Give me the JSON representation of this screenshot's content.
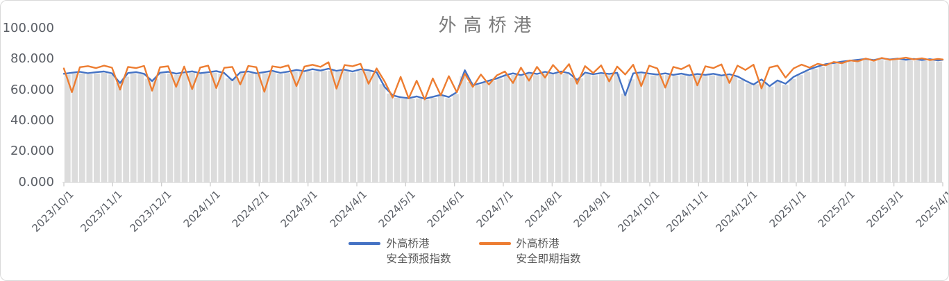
{
  "chart": {
    "title": "外高桥港",
    "colors": {
      "forecast_line": "#4472C4",
      "spot_line": "#ED7D31",
      "background_bars": "#DCDCDC",
      "axis_line": "#D9D9D9",
      "tick_mark": "#C9C9C9",
      "axis_text": "#5b5f66",
      "legend_text": "#595959",
      "title_text": "#7b7b7b",
      "frame_border": "#D9D9D9"
    },
    "legend": {
      "items": [
        {
          "line1": "外高桥港",
          "line2": "安全预报指数",
          "color": "#4472C4"
        },
        {
          "line1": "外高桥港",
          "line2": "安全即期指数",
          "color": "#ED7D31"
        }
      ]
    }
  },
  "chart_data": {
    "type": "line",
    "title": "外高桥港",
    "grid": "off",
    "legend_position": "bottom-center",
    "x_axis": {
      "start": "2023/10/1",
      "end": "2025/4/1",
      "tick_labels": [
        "2023/10/1",
        "2023/11/1",
        "2023/12/1",
        "2024/1/1",
        "2024/2/1",
        "2024/3/1",
        "2024/4/1",
        "2024/5/1",
        "2024/6/1",
        "2024/7/1",
        "2024/8/1",
        "2024/9/1",
        "2024/10/1",
        "2024/11/1",
        "2024/12/1",
        "2025/1/1",
        "2025/2/1",
        "2025/3/1",
        "2025/4/1"
      ],
      "unit": "days since 2023/10/1"
    },
    "y_axis": {
      "min": 0,
      "max": 100,
      "tick_labels": [
        "0.000",
        "20.000",
        "40.000",
        "60.000",
        "80.000",
        "100.000"
      ]
    },
    "days": [
      0,
      5,
      10,
      15,
      20,
      25,
      30,
      35,
      40,
      45,
      50,
      55,
      60,
      65,
      70,
      75,
      80,
      85,
      90,
      95,
      100,
      105,
      110,
      115,
      120,
      125,
      130,
      135,
      140,
      145,
      150,
      155,
      160,
      165,
      170,
      175,
      180,
      185,
      190,
      195,
      200,
      205,
      210,
      215,
      220,
      225,
      230,
      235,
      240,
      245,
      250,
      255,
      260,
      265,
      270,
      275,
      280,
      285,
      290,
      295,
      300,
      305,
      310,
      315,
      320,
      325,
      330,
      335,
      340,
      345,
      350,
      355,
      360,
      365,
      370,
      375,
      380,
      385,
      390,
      395,
      400,
      405,
      410,
      415,
      420,
      425,
      430,
      435,
      440,
      445,
      450,
      455,
      460,
      465,
      470,
      475,
      480,
      485,
      490,
      495,
      500,
      505,
      510,
      515,
      520,
      525,
      530,
      535,
      540,
      545,
      548
    ],
    "series": [
      {
        "name": "外高桥港安全预报指数",
        "color": "#4472C4",
        "values": [
          70.5,
          71.2,
          71.8,
          70.9,
          71.5,
          72.0,
          70.8,
          64.5,
          71.0,
          71.6,
          70.5,
          65.8,
          71.2,
          71.8,
          70.6,
          71.4,
          72.1,
          70.9,
          71.5,
          72.3,
          71.0,
          66.2,
          71.4,
          72.0,
          70.8,
          71.6,
          72.4,
          71.1,
          71.9,
          73.0,
          72.2,
          73.5,
          72.6,
          73.8,
          72.4,
          73.2,
          72.0,
          73.4,
          72.8,
          71.5,
          62.0,
          56.5,
          55.2,
          54.6,
          55.8,
          54.2,
          55.5,
          56.8,
          55.4,
          58.5,
          72.8,
          63.0,
          64.5,
          66.0,
          67.5,
          69.5,
          70.8,
          69.6,
          71.2,
          70.4,
          71.8,
          70.6,
          72.0,
          70.9,
          66.5,
          71.3,
          70.2,
          71.0,
          70.4,
          71.2,
          56.5,
          70.8,
          71.4,
          70.6,
          70.0,
          70.8,
          69.8,
          70.6,
          69.5,
          70.4,
          69.8,
          70.5,
          69.4,
          70.2,
          68.8,
          66.0,
          63.5,
          66.8,
          62.5,
          66.2,
          64.0,
          68.5,
          71.0,
          73.5,
          75.2,
          76.8,
          77.5,
          78.4,
          79.0,
          79.6,
          80.2,
          79.4,
          80.6,
          79.8,
          80.4,
          79.6,
          80.2,
          79.4,
          80.0,
          79.2,
          79.6
        ]
      },
      {
        "name": "外高桥港安全即期指数",
        "color": "#ED7D31",
        "values": [
          74.0,
          58.5,
          74.8,
          75.5,
          74.2,
          75.8,
          74.5,
          60.2,
          75.0,
          74.2,
          75.6,
          59.5,
          74.8,
          75.4,
          62.0,
          75.2,
          60.5,
          74.6,
          75.8,
          61.2,
          74.4,
          75.0,
          63.5,
          75.6,
          74.8,
          58.8,
          75.4,
          74.6,
          76.0,
          62.5,
          75.2,
          76.4,
          75.0,
          78.0,
          60.8,
          76.2,
          75.4,
          77.0,
          64.0,
          74.0,
          65.5,
          55.0,
          68.5,
          54.5,
          66.0,
          53.8,
          67.5,
          56.5,
          69.0,
          58.5,
          70.5,
          62.0,
          70.0,
          63.5,
          69.5,
          72.0,
          64.5,
          74.5,
          66.0,
          75.0,
          68.0,
          76.2,
          70.5,
          76.8,
          64.0,
          75.5,
          71.0,
          76.0,
          65.5,
          75.2,
          70.0,
          76.4,
          62.5,
          75.8,
          74.0,
          61.5,
          75.0,
          73.5,
          76.2,
          63.0,
          75.4,
          74.2,
          76.6,
          64.5,
          75.8,
          73.0,
          76.4,
          61.0,
          74.6,
          75.8,
          68.0,
          74.0,
          76.5,
          74.5,
          77.0,
          76.0,
          78.2,
          77.4,
          79.2,
          78.6,
          80.4,
          79.0,
          80.8,
          79.6,
          80.2,
          81.0,
          79.8,
          80.6,
          79.4,
          80.2,
          79.8
        ]
      }
    ],
    "background_bars": {
      "description": "light gray striped columns filling from baseline up to the forecast-index line",
      "color": "#DCDCDC",
      "count": 120,
      "follows_series": "外高桥港安全预报指数"
    }
  }
}
